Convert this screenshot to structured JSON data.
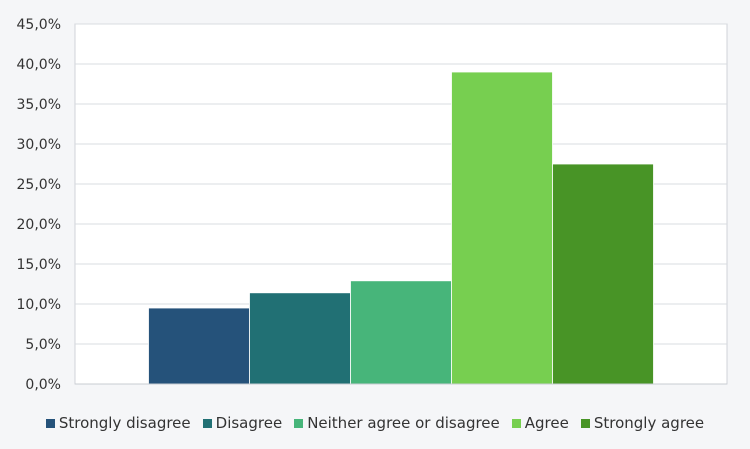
{
  "chart_data": {
    "type": "bar",
    "ylim": [
      0,
      45
    ],
    "ytick_step": 5,
    "ytick_labels": [
      "0,0%",
      "5,0%",
      "10,0%",
      "15,0%",
      "20,0%",
      "25,0%",
      "30,0%",
      "35,0%",
      "40,0%",
      "45,0%"
    ],
    "grid": true,
    "legend_position": "bottom",
    "series": [
      {
        "name": "Strongly disagree",
        "value": 9.5,
        "color": "#25527a"
      },
      {
        "name": "Disagree",
        "value": 11.4,
        "color": "#217074"
      },
      {
        "name": "Neither agree or disagree",
        "value": 12.9,
        "color": "#47b57a"
      },
      {
        "name": "Agree",
        "value": 39.0,
        "color": "#77cf50"
      },
      {
        "name": "Strongly agree",
        "value": 27.5,
        "color": "#489426"
      }
    ]
  }
}
